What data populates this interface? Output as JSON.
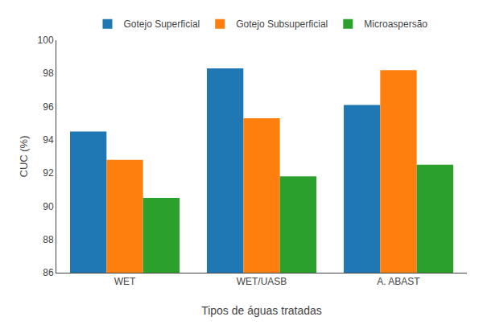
{
  "chart_data": {
    "type": "bar",
    "categories": [
      "WET",
      "WET/UASB",
      "A. ABAST"
    ],
    "series": [
      {
        "name": "Gotejo Superficial",
        "values": [
          94.5,
          98.3,
          96.1
        ]
      },
      {
        "name": "Gotejo Subsuperficial",
        "values": [
          92.8,
          95.3,
          98.2
        ]
      },
      {
        "name": "Microaspersão",
        "values": [
          90.5,
          91.8,
          92.5
        ]
      }
    ],
    "xlabel": "Tipos de águas tratadas",
    "ylabel": "CUC (%)",
    "ylim": [
      86,
      100
    ],
    "yticks": [
      86,
      88,
      90,
      92,
      94,
      96,
      98,
      100
    ],
    "grid": false,
    "legend": "top"
  }
}
